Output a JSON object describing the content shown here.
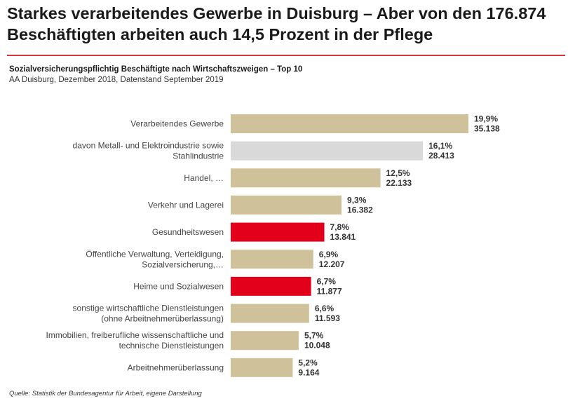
{
  "header": {
    "title_line1": "Starkes verarbeitendes Gewerbe in Duisburg – Aber von den 176.874",
    "title_line2": "Beschäftigten arbeiten auch 14,5 Prozent in der Pflege",
    "subtitle": "Sozialversicherungspflichtig Beschäftigte nach Wirtschaftszweigen – Top 10",
    "source_line": "AA Duisburg, Dezember 2018, Datenstand September 2019"
  },
  "footer": {
    "note": "Quelle: Statistik der Bundesagentur für Arbeit, eigene Darstellung"
  },
  "colors": {
    "default_bar": "#cfc29a",
    "subcategory_bar": "#d9d9d9",
    "highlight_bar": "#e2001a",
    "rule": "#d9343f"
  },
  "chart_data": {
    "type": "bar",
    "orientation": "horizontal",
    "categories": [
      [
        "Verarbeitendes Gewerbe"
      ],
      [
        "davon Metall- und Elektroindustrie sowie",
        "Stahlindustrie"
      ],
      [
        "Handel, …"
      ],
      [
        "Verkehr und Lagerei"
      ],
      [
        "Gesundheitswesen"
      ],
      [
        "Öffentliche Verwaltung, Verteidigung,",
        "Sozialversicherung,…"
      ],
      [
        "Heime und Sozialwesen"
      ],
      [
        "sonstige wirtschaftliche Dienstleistungen",
        "(ohne Arbeitnehmerüberlassung)"
      ],
      [
        "Immobilien, freiberufliche wissenschaftliche und",
        "technische Dienstleistungen"
      ],
      [
        "Arbeitnehmerüberlassung"
      ]
    ],
    "values": [
      35138,
      28413,
      22133,
      16382,
      13841,
      12207,
      11877,
      11593,
      10048,
      9164
    ],
    "percent_labels": [
      "19,9%",
      "16,1%",
      "12,5%",
      "9,3%",
      "7,8%",
      "6,9%",
      "6,7%",
      "6,6%",
      "5,7%",
      "5,2%"
    ],
    "value_labels": [
      "35.138",
      "28.413",
      "22.133",
      "16.382",
      "13.841",
      "12.207",
      "11.877",
      "11.593",
      "10.048",
      "9.164"
    ],
    "bar_style": [
      "default",
      "subcategory",
      "default",
      "default",
      "highlight",
      "default",
      "highlight",
      "default",
      "default",
      "default"
    ],
    "xlim": [
      0,
      35138
    ],
    "grid": false,
    "legend": "none"
  }
}
